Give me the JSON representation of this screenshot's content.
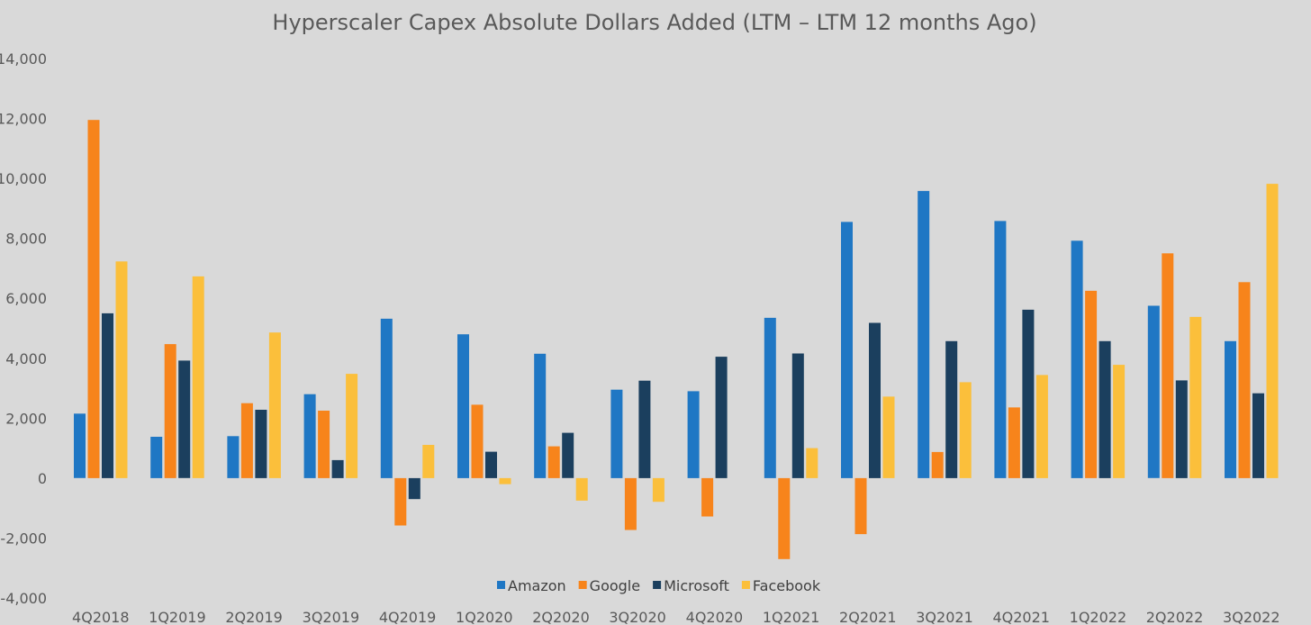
{
  "chart_data": {
    "type": "bar",
    "title": "Hyperscaler Capex Absolute Dollars Added (LTM – LTM 12 months Ago)",
    "xlabel": "",
    "ylabel": "",
    "ylim": [
      -4000,
      14000
    ],
    "yticks": [
      14000,
      12000,
      10000,
      8000,
      6000,
      4000,
      2000,
      0,
      -2000,
      -4000
    ],
    "ytick_labels": [
      "14,000",
      "12,000",
      "10,000",
      "8,000",
      "6,000",
      "4,000",
      "2,000",
      "0",
      "-2,000",
      "-4,000"
    ],
    "grid": false,
    "legend_position": "bottom",
    "categories": [
      "4Q2018",
      "1Q2019",
      "2Q2019",
      "3Q2019",
      "4Q2019",
      "1Q2020",
      "2Q2020",
      "3Q2020",
      "4Q2020",
      "1Q2021",
      "2Q2021",
      "3Q2021",
      "4Q2021",
      "1Q2022",
      "2Q2022",
      "3Q2022"
    ],
    "series": [
      {
        "name": "Amazon",
        "color": "#1f77c4",
        "values": [
          2150,
          1380,
          1400,
          2800,
          5320,
          4800,
          4150,
          2950,
          2900,
          5350,
          8550,
          9580,
          8580,
          7920,
          5750,
          4570
        ]
      },
      {
        "name": "Google",
        "color": "#f7841b",
        "values": [
          11950,
          4470,
          2500,
          2250,
          -1580,
          2450,
          1060,
          -1730,
          -1280,
          -2700,
          -1870,
          870,
          2360,
          6250,
          7500,
          6540
        ]
      },
      {
        "name": "Microsoft",
        "color": "#1b3f5e",
        "values": [
          5500,
          3920,
          2280,
          600,
          -700,
          880,
          1510,
          3250,
          4050,
          4160,
          5180,
          4570,
          5620,
          4570,
          3260,
          2830
        ]
      },
      {
        "name": "Facebook",
        "color": "#fbbf3b",
        "values": [
          7230,
          6730,
          4860,
          3480,
          1110,
          -200,
          -750,
          -790,
          0,
          1000,
          2720,
          3200,
          3440,
          3780,
          5380,
          9820
        ]
      }
    ]
  }
}
